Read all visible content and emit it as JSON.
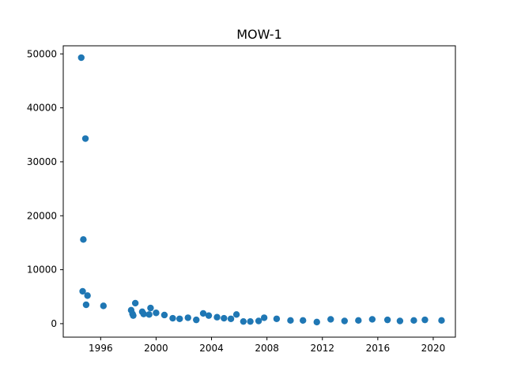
{
  "chart_data": {
    "type": "scatter",
    "title": "MOW-1",
    "xlabel": "",
    "ylabel": "",
    "xlim": [
      1993.3,
      2021.6
    ],
    "ylim": [
      -2500,
      51500
    ],
    "x_ticks": [
      1996,
      2000,
      2004,
      2008,
      2012,
      2016,
      2020
    ],
    "x_tick_labels": [
      "1996",
      "2000",
      "2004",
      "2008",
      "2012",
      "2016",
      "2020"
    ],
    "y_ticks": [
      0,
      10000,
      20000,
      30000,
      40000,
      50000
    ],
    "y_tick_labels": [
      "0",
      "10000",
      "20000",
      "30000",
      "40000",
      "50000"
    ],
    "grid": false,
    "marker_color": "#1f77b4",
    "series": [
      {
        "points": [
          [
            1994.6,
            49300
          ],
          [
            1994.9,
            34300
          ],
          [
            1994.75,
            15600
          ],
          [
            1994.7,
            6000
          ],
          [
            1995.05,
            5200
          ],
          [
            1994.95,
            3500
          ],
          [
            1996.2,
            3300
          ],
          [
            1998.2,
            2500
          ],
          [
            1998.5,
            3800
          ],
          [
            1998.3,
            1800
          ],
          [
            1998.35,
            1500
          ],
          [
            1999.0,
            2200
          ],
          [
            1999.1,
            1800
          ],
          [
            1999.6,
            2900
          ],
          [
            1999.5,
            1700
          ],
          [
            2000.0,
            2000
          ],
          [
            2000.6,
            1600
          ],
          [
            2001.2,
            1000
          ],
          [
            2001.7,
            900
          ],
          [
            2002.3,
            1100
          ],
          [
            2002.9,
            700
          ],
          [
            2003.4,
            1900
          ],
          [
            2003.8,
            1500
          ],
          [
            2004.4,
            1200
          ],
          [
            2004.9,
            1000
          ],
          [
            2005.4,
            900
          ],
          [
            2005.8,
            1700
          ],
          [
            2006.3,
            400
          ],
          [
            2006.8,
            400
          ],
          [
            2007.4,
            500
          ],
          [
            2007.8,
            1100
          ],
          [
            2008.7,
            900
          ],
          [
            2009.7,
            600
          ],
          [
            2010.6,
            600
          ],
          [
            2011.6,
            300
          ],
          [
            2012.6,
            800
          ],
          [
            2013.6,
            500
          ],
          [
            2014.6,
            600
          ],
          [
            2015.6,
            800
          ],
          [
            2016.7,
            700
          ],
          [
            2017.6,
            500
          ],
          [
            2018.6,
            600
          ],
          [
            2019.4,
            700
          ],
          [
            2020.6,
            600
          ]
        ]
      }
    ]
  }
}
